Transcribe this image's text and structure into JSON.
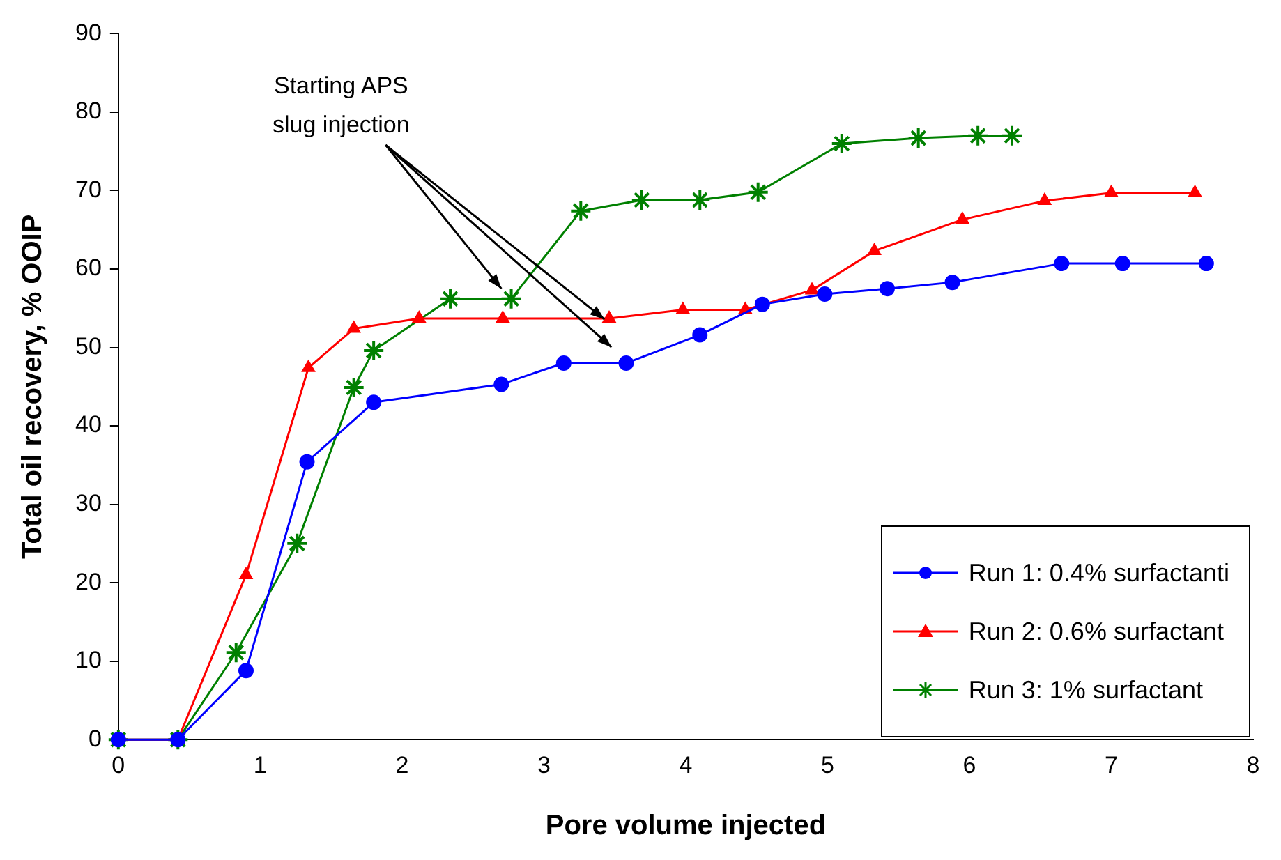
{
  "chart_data": {
    "type": "line",
    "xlabel": "Pore volume injected",
    "ylabel": "Total oil recovery, % OOIP",
    "xlim": [
      0,
      8
    ],
    "xticks": [
      0,
      1,
      2,
      3,
      4,
      5,
      6,
      7,
      8
    ],
    "ylim": [
      0,
      90
    ],
    "yticks": [
      0,
      10,
      20,
      30,
      40,
      50,
      60,
      70,
      80,
      90
    ],
    "grid": false,
    "legend": "bottom right",
    "annotations": [
      {
        "text": "Starting APS\nslug injection",
        "x": 2.7,
        "y": 57.5
      }
    ],
    "series": [
      {
        "name": "Run 1: 0.4% surfactanti",
        "color": "#0000ff",
        "marker": "circle",
        "x": [
          0,
          0.42,
          0.9,
          1.33,
          1.8,
          2.7,
          3.14,
          3.58,
          4.1,
          4.54,
          4.98,
          5.42,
          5.88,
          6.65,
          7.08,
          7.67
        ],
        "values": [
          0,
          0,
          8.8,
          35.4,
          43,
          45.3,
          48,
          48,
          51.6,
          55.5,
          56.8,
          57.5,
          58.3,
          60.7,
          60.7,
          60.7
        ]
      },
      {
        "name": "Run 2: 0.6% surfactant",
        "color": "#ff0000",
        "marker": "triangle",
        "x": [
          0,
          0.42,
          0.9,
          1.34,
          1.66,
          2.12,
          2.71,
          3.46,
          3.98,
          4.42,
          4.89,
          5.33,
          5.95,
          6.53,
          7,
          7.59
        ],
        "values": [
          0,
          0,
          21,
          47.4,
          52.4,
          53.7,
          53.7,
          53.7,
          54.8,
          54.8,
          57.3,
          62.3,
          66.3,
          68.7,
          69.7,
          69.7
        ]
      },
      {
        "name": "Run 3: 1% surfactant",
        "color": "#008000",
        "marker": "cross",
        "x": [
          0,
          0.42,
          0.83,
          1.26,
          1.66,
          1.8,
          2.34,
          2.77,
          3.26,
          3.69,
          4.1,
          4.51,
          5.1,
          5.64,
          6.06,
          6.3
        ],
        "values": [
          0,
          0,
          11.1,
          25,
          44.9,
          49.6,
          56.2,
          56.2,
          67.4,
          68.8,
          68.8,
          69.8,
          76,
          76.7,
          77,
          77
        ]
      }
    ]
  }
}
